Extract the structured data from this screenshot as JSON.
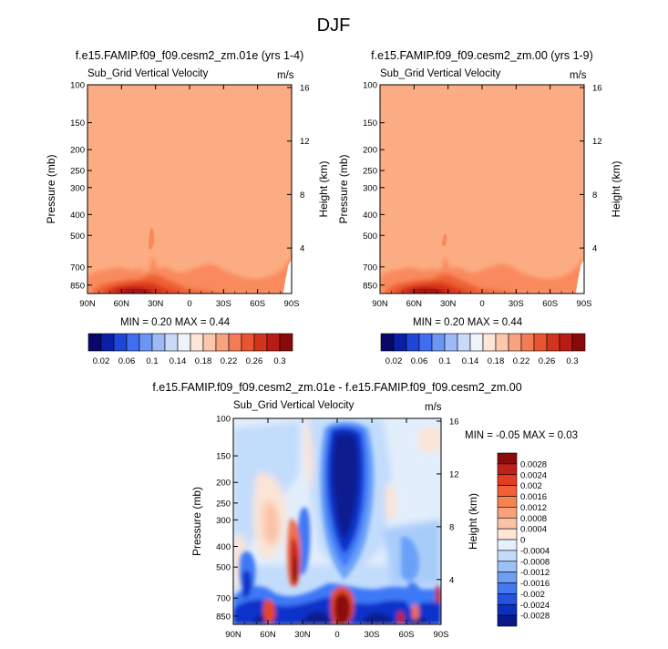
{
  "figure_title": "DJF",
  "colors": {
    "base_fill": "#fcac82",
    "warm_palette": [
      "#fce1d1",
      "#fcc8ad",
      "#fcac82",
      "#f98a5d",
      "#ee6136",
      "#d8371b",
      "#b51818",
      "#8b0b0b"
    ],
    "diff_palette": [
      "#0b1c8e",
      "#0a32c9",
      "#1c53ec",
      "#3c78f6",
      "#6aa0f8",
      "#98c2fa",
      "#c2dcfc",
      "#e5f0fd",
      "#fde4d6",
      "#fac2a6",
      "#f69a78",
      "#f0704e",
      "#e44626",
      "#c4231a",
      "#8b0b0b"
    ]
  },
  "chart_data": [
    {
      "id": "panel-left",
      "type": "heatmap",
      "title": "f.e15.FAMIP.f09_f09.cesm2_zm.01e (yrs 1-4)",
      "subtitle_left": "Sub_Grid Vertical Velocity",
      "units": "m/s",
      "ylabel": "Pressure (mb)",
      "y2label": "Height (km)",
      "x_ticks": [
        "90N",
        "60N",
        "30N",
        "0",
        "30S",
        "60S",
        "90S"
      ],
      "y_ticks": [
        "100",
        "150",
        "200",
        "250",
        "300",
        "400",
        "500",
        "700",
        "850"
      ],
      "y2_ticks": [
        "16",
        "12",
        "8",
        "4"
      ],
      "min_max": "MIN =  0.20  MAX =  0.44",
      "stats": {
        "min": 0.2,
        "max": 0.44
      },
      "xlim": [
        90,
        -90
      ],
      "ylim": [
        1000,
        100
      ]
    },
    {
      "id": "panel-right",
      "type": "heatmap",
      "title": "f.e15.FAMIP.f09_f09.cesm2_zm.00 (yrs 1-9)",
      "subtitle_left": "Sub_Grid Vertical Velocity",
      "units": "m/s",
      "ylabel": "Pressure (mb)",
      "y2label": "Height (km)",
      "x_ticks": [
        "90N",
        "60N",
        "30N",
        "0",
        "30S",
        "60S",
        "90S"
      ],
      "y_ticks": [
        "100",
        "150",
        "200",
        "250",
        "300",
        "400",
        "500",
        "700",
        "850"
      ],
      "y2_ticks": [
        "16",
        "12",
        "8",
        "4"
      ],
      "min_max": "MIN =  0.20  MAX =  0.44",
      "stats": {
        "min": 0.2,
        "max": 0.44
      },
      "xlim": [
        90,
        -90
      ],
      "ylim": [
        1000,
        100
      ]
    },
    {
      "id": "panel-diff",
      "type": "heatmap",
      "title": "f.e15.FAMIP.f09_f09.cesm2_zm.01e - f.e15.FAMIP.f09_f09.cesm2_zm.00",
      "subtitle_left": "Sub_Grid Vertical Velocity",
      "units": "m/s",
      "ylabel": "Pressure (mb)",
      "y2label": "Height (km)",
      "x_ticks": [
        "90N",
        "60N",
        "30N",
        "0",
        "30S",
        "60S",
        "90S"
      ],
      "y_ticks": [
        "100",
        "150",
        "200",
        "250",
        "300",
        "400",
        "500",
        "700",
        "850"
      ],
      "y2_ticks": [
        "16",
        "12",
        "8",
        "4"
      ],
      "min_max": "MIN = -0.05  MAX =  0.03",
      "stats": {
        "min": -0.05,
        "max": 0.03
      },
      "xlim": [
        90,
        -90
      ],
      "ylim": [
        1000,
        100
      ]
    }
  ],
  "colorbars": {
    "shared": {
      "labels": [
        "0.02",
        "0.06",
        "0.1",
        "0.14",
        "0.18",
        "0.22",
        "0.26",
        "0.3"
      ],
      "colors": [
        "#08086b",
        "#0a1fa8",
        "#1f46d6",
        "#3f6ef0",
        "#6d95f3",
        "#9dbaf6",
        "#c9daf9",
        "#eef4fc",
        "#fde6d8",
        "#fcc7ad",
        "#f9a27f",
        "#f37b55",
        "#e85530",
        "#d3341d",
        "#b81c14",
        "#8a0a0a"
      ]
    },
    "diff": {
      "labels": [
        "0.0028",
        "0.0024",
        "0.002",
        "0.0016",
        "0.0012",
        "0.0008",
        "0.0004",
        "0",
        "-0.0004",
        "-0.0008",
        "-0.0012",
        "-0.0016",
        "-0.002",
        "-0.0024",
        "-0.0028"
      ],
      "colors": [
        "#8b0b0b",
        "#c0201a",
        "#e03d22",
        "#f25f36",
        "#f7844f",
        "#f9a27a",
        "#fbc3a6",
        "#fde5d7",
        "#e6f0fd",
        "#c3dbfb",
        "#9bc1f8",
        "#6e9df5",
        "#4579ef",
        "#2552e0",
        "#0c2fbe",
        "#081a8a"
      ]
    }
  }
}
